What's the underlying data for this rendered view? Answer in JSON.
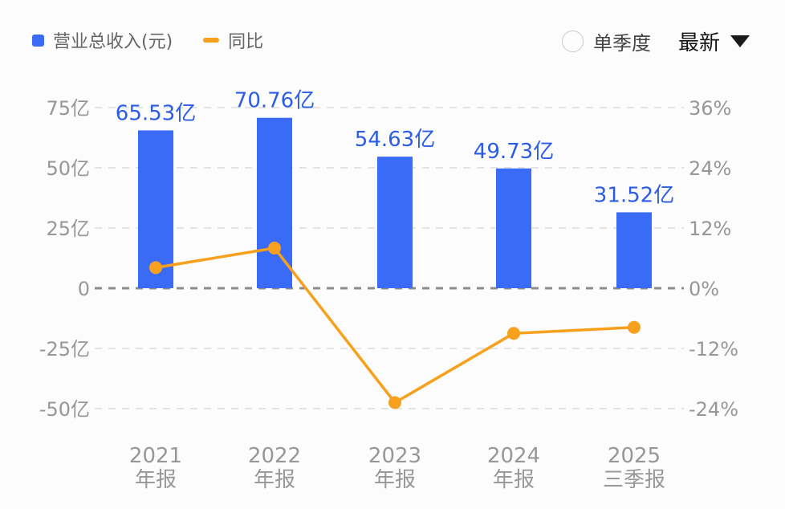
{
  "legend": {
    "revenue": {
      "label": "营业总收入(元)"
    },
    "yoy": {
      "label": "同比"
    }
  },
  "controls": {
    "radio_label": "单季度",
    "dropdown_label": "最新"
  },
  "colors": {
    "bar": "#3a6bf7",
    "bar_label": "#2b5ce5",
    "line": "#f7a01e",
    "axis_text": "#979797",
    "grid_light": "#e4e4e4",
    "grid_zero": "#8c8c8c",
    "legend_text": "#666666"
  },
  "chart_data": {
    "type": "bar+line",
    "title": "",
    "categories": [
      [
        "2021",
        "年报"
      ],
      [
        "2022",
        "年报"
      ],
      [
        "2023",
        "年报"
      ],
      [
        "2024",
        "年报"
      ],
      [
        "2025",
        "三季报"
      ]
    ],
    "series": [
      {
        "name": "营业总收入(元)",
        "type": "bar",
        "unit": "亿",
        "axis": "left",
        "values": [
          65.53,
          70.76,
          54.63,
          49.73,
          31.52
        ],
        "labels": [
          "65.53亿",
          "70.76亿",
          "54.63亿",
          "49.73亿",
          "31.52亿"
        ]
      },
      {
        "name": "同比",
        "type": "line",
        "unit": "%",
        "axis": "right",
        "values": [
          4.1,
          8.0,
          -22.8,
          -9.0,
          -7.8
        ]
      }
    ],
    "left_axis": {
      "label_unit": "亿",
      "tick_labels": [
        "75亿",
        "50亿",
        "25亿",
        "0",
        "-25亿",
        "-50亿"
      ],
      "tick_values": [
        75,
        50,
        25,
        0,
        -25,
        -50
      ],
      "range": [
        -62.5,
        87.5
      ]
    },
    "right_axis": {
      "label_unit": "%",
      "tick_labels": [
        "36%",
        "24%",
        "12%",
        "0%",
        "-12%",
        "-24%"
      ],
      "tick_values": [
        36,
        24,
        12,
        0,
        -12,
        -24
      ],
      "range": [
        -30,
        42
      ]
    },
    "grid": "dashed-horizontal",
    "legend_position": "top-left"
  }
}
